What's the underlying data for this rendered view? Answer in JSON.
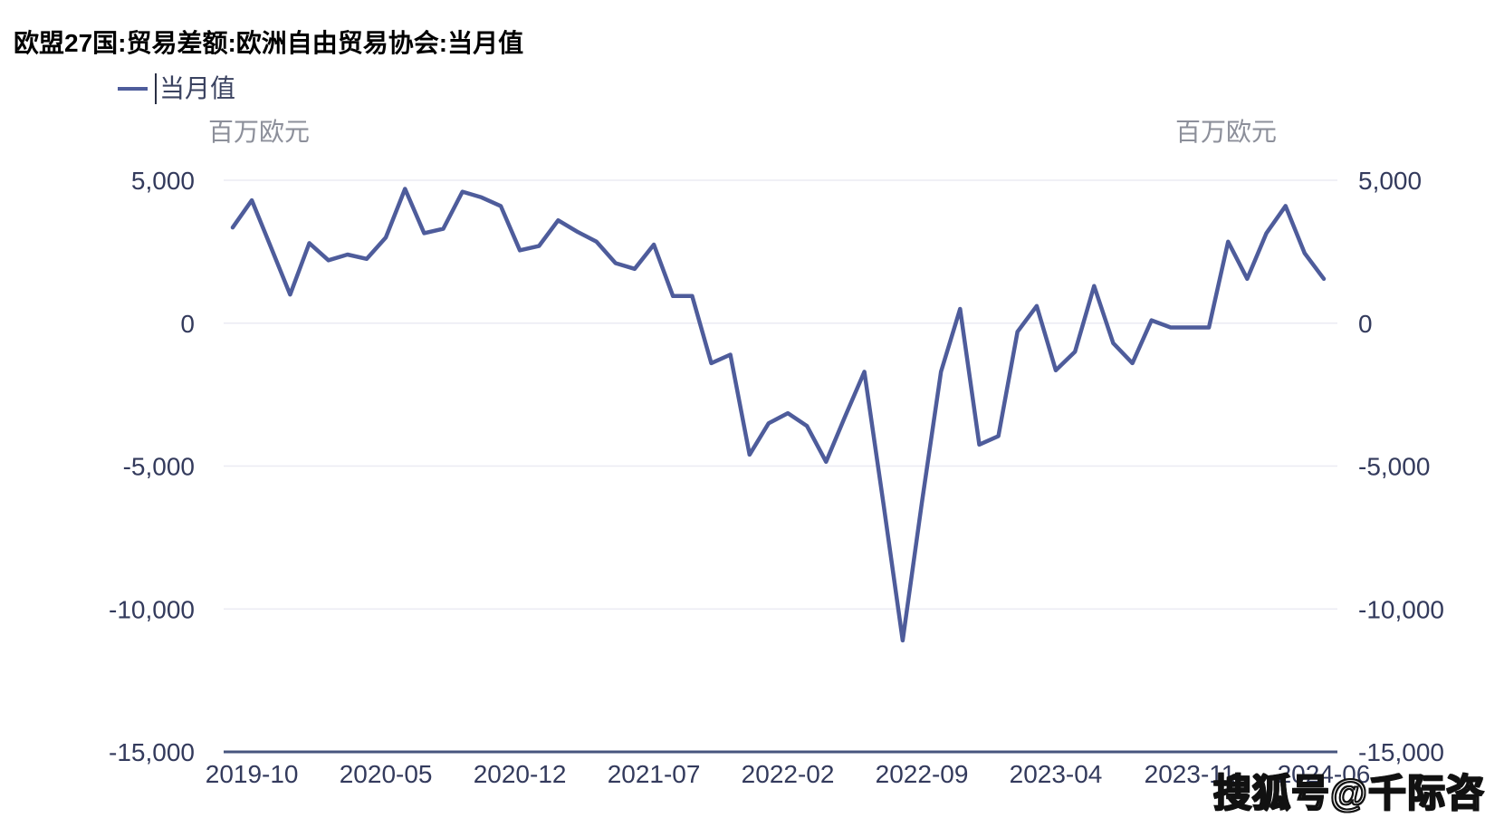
{
  "title": "欧盟27国:贸易差额:欧洲自由贸易协会:当月值",
  "legend": {
    "label": "当月值"
  },
  "unit_left": "百万欧元",
  "unit_right": "百万欧元",
  "watermark": "搜狐号@千际咨询",
  "colors": {
    "line": "#4e5c9b",
    "axis": "#47557e",
    "grid": "#ebebf3",
    "tick_text": "#333a5c",
    "unit_text": "#8c8f9a",
    "title_text": "#000000"
  },
  "chart_data": {
    "type": "line",
    "title": "欧盟27国:贸易差额:欧洲自由贸易协会:当月值",
    "series_name": "当月值",
    "unit": "百万欧元",
    "x": [
      "2019-09",
      "2019-10",
      "2019-11",
      "2019-12",
      "2020-01",
      "2020-02",
      "2020-03",
      "2020-04",
      "2020-05",
      "2020-06",
      "2020-07",
      "2020-08",
      "2020-09",
      "2020-10",
      "2020-11",
      "2020-12",
      "2021-01",
      "2021-02",
      "2021-03",
      "2021-04",
      "2021-05",
      "2021-06",
      "2021-07",
      "2021-08",
      "2021-09",
      "2021-10",
      "2021-11",
      "2021-12",
      "2022-01",
      "2022-02",
      "2022-03",
      "2022-04",
      "2022-05",
      "2022-06",
      "2022-07",
      "2022-08",
      "2022-09",
      "2022-10",
      "2022-11",
      "2022-12",
      "2023-01",
      "2023-02",
      "2023-03",
      "2023-04",
      "2023-05",
      "2023-06",
      "2023-07",
      "2023-08",
      "2023-09",
      "2023-10",
      "2023-11",
      "2023-12",
      "2024-01",
      "2024-02",
      "2024-03",
      "2024-04",
      "2024-05",
      "2024-06"
    ],
    "values": [
      3350,
      4300,
      2650,
      1000,
      2800,
      2200,
      2400,
      2250,
      3000,
      4700,
      3150,
      3300,
      4600,
      4400,
      4100,
      2550,
      2700,
      3600,
      3200,
      2850,
      2100,
      1900,
      2750,
      950,
      950,
      -1400,
      -1100,
      -4600,
      -3500,
      -3150,
      -3600,
      -4850,
      -3250,
      -1700,
      -6350,
      -11100,
      -6300,
      -1700,
      500,
      -4250,
      -3950,
      -300,
      600,
      -1650,
      -1000,
      1300,
      -700,
      -1400,
      100,
      -150,
      -150,
      -150,
      2850,
      1550,
      3150,
      4100,
      2450,
      1550
    ],
    "x_tick_labels": [
      "2019-10",
      "2020-05",
      "2020-12",
      "2021-07",
      "2022-02",
      "2022-09",
      "2023-04",
      "2023-11",
      "2024-06"
    ],
    "y_ticks": [
      5000,
      0,
      -5000,
      -10000,
      -15000
    ],
    "ylim": [
      -15000,
      5000
    ],
    "grid": "horizontal",
    "legend_position": "top-left"
  }
}
